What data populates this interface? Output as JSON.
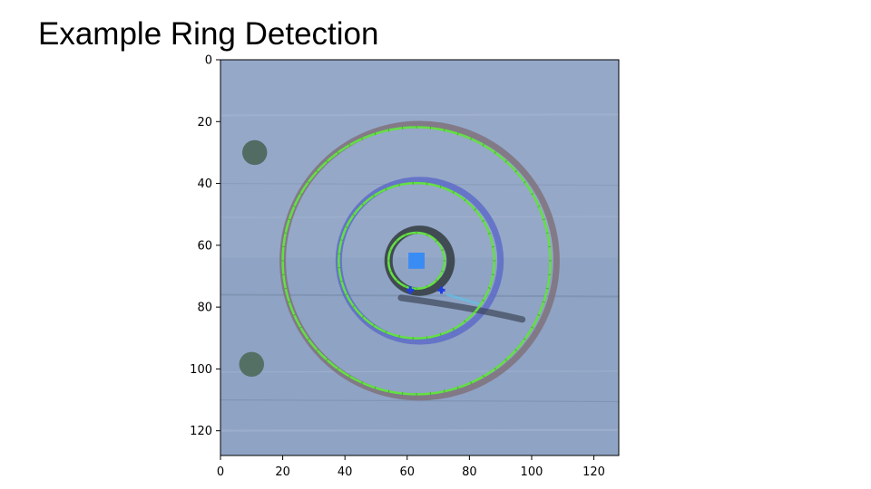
{
  "slide": {
    "title": "Example Ring Detection"
  },
  "chart_data": {
    "type": "image",
    "image_size": [
      128,
      128
    ],
    "xlim": [
      0,
      128
    ],
    "ylim": [
      128,
      0
    ],
    "xticks": [
      0,
      20,
      40,
      60,
      80,
      100,
      120
    ],
    "yticks": [
      0,
      20,
      40,
      60,
      80,
      100,
      120
    ],
    "x_tick_labels": [
      "0",
      "20",
      "40",
      "60",
      "80",
      "100",
      "120"
    ],
    "y_tick_labels": [
      "0",
      "20",
      "40",
      "60",
      "80",
      "100",
      "120"
    ],
    "background_color": "#8fa3c4",
    "target_rings": [
      {
        "cx": 64,
        "cy": 65,
        "r": 44,
        "color": "#7e6e78"
      },
      {
        "cx": 64,
        "cy": 65,
        "r": 26,
        "color": "#5a68c8"
      },
      {
        "cx": 64,
        "cy": 65,
        "r": 10,
        "color": "#2c3336"
      }
    ],
    "detected_rings": [
      {
        "cx": 63,
        "cy": 65,
        "r": 43,
        "color": "#63e043"
      },
      {
        "cx": 63,
        "cy": 65,
        "r": 25,
        "color": "#63e043"
      },
      {
        "cx": 63,
        "cy": 65,
        "r": 9,
        "color": "#63e043"
      }
    ],
    "center_marker": {
      "x": 63,
      "y": 65,
      "color": "#3a8cf5"
    },
    "keypoints": [
      {
        "x": 61,
        "y": 74.5,
        "color": "#1f3fe0"
      },
      {
        "x": 71,
        "y": 74.5,
        "color": "#1f3fe0"
      }
    ],
    "dots": [
      {
        "x": 11,
        "y": 30,
        "r": 4,
        "color": "#4a6458"
      },
      {
        "x": 10,
        "y": 98.5,
        "r": 4,
        "color": "#4e6a5a"
      }
    ]
  }
}
